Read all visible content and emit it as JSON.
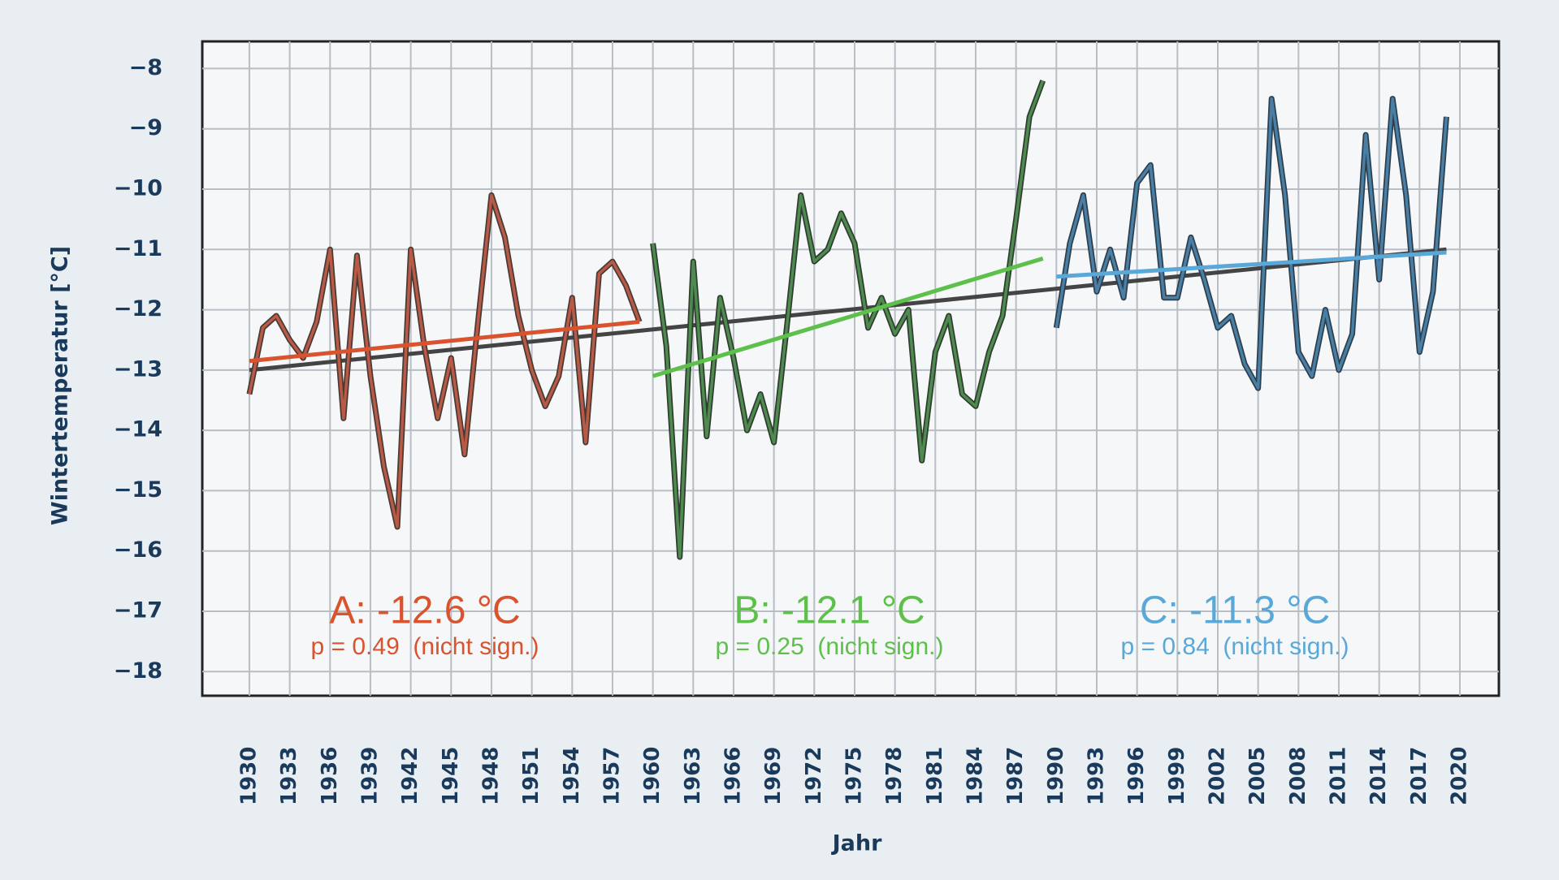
{
  "chart_data": {
    "type": "line",
    "x_label": "Jahr",
    "y_label": "Wintertemperatur [°C]",
    "xlim": [
      1926.5,
      2022.9
    ],
    "ylim": [
      -18.4,
      -7.55
    ],
    "xticks": [
      1930,
      1933,
      1936,
      1939,
      1942,
      1945,
      1948,
      1951,
      1954,
      1957,
      1960,
      1963,
      1966,
      1969,
      1972,
      1975,
      1978,
      1981,
      1984,
      1987,
      1990,
      1993,
      1996,
      1999,
      2002,
      2005,
      2008,
      2011,
      2014,
      2017,
      2020
    ],
    "yticks": [
      {
        "value": -8,
        "label": "−8"
      },
      {
        "value": -9,
        "label": "−9"
      },
      {
        "value": -10,
        "label": "−10"
      },
      {
        "value": -11,
        "label": "−11"
      },
      {
        "value": -12,
        "label": "−12"
      },
      {
        "value": -13,
        "label": "−13"
      },
      {
        "value": -14,
        "label": "−14"
      },
      {
        "value": -15,
        "label": "−15"
      },
      {
        "value": -16,
        "label": "−16"
      },
      {
        "value": -17,
        "label": "−17"
      },
      {
        "value": -18,
        "label": "−18"
      }
    ],
    "grid": true,
    "series": [
      {
        "color": "#b85a45",
        "outline": "#4a3a36",
        "x": [
          1930,
          1931,
          1932,
          1933,
          1934,
          1935,
          1936,
          1937,
          1938,
          1939,
          1940,
          1941,
          1942,
          1943,
          1944,
          1945,
          1946,
          1947,
          1948,
          1949,
          1950,
          1951,
          1952,
          1953,
          1954,
          1955,
          1956,
          1957,
          1958,
          1959
        ],
        "values": [
          -13.4,
          -12.3,
          -12.1,
          -12.5,
          -12.8,
          -12.2,
          -11.0,
          -13.8,
          -11.1,
          -13.1,
          -14.6,
          -15.6,
          -11.0,
          -12.6,
          -13.8,
          -12.8,
          -14.4,
          -12.2,
          -10.1,
          -10.8,
          -12.1,
          -13.0,
          -13.6,
          -13.1,
          -11.8,
          -14.2,
          -11.4,
          -11.2,
          -11.6,
          -12.2
        ]
      },
      {
        "color": "#4f8a50",
        "outline": "#2e3d2e",
        "x": [
          1960,
          1961,
          1962,
          1963,
          1964,
          1965,
          1966,
          1967,
          1968,
          1969,
          1970,
          1971,
          1972,
          1973,
          1974,
          1975,
          1976,
          1977,
          1978,
          1979,
          1980,
          1981,
          1982,
          1983,
          1984,
          1985,
          1986,
          1987,
          1988,
          1989
        ],
        "values": [
          -10.9,
          -12.6,
          -16.1,
          -11.2,
          -14.1,
          -11.8,
          -12.8,
          -14.0,
          -13.4,
          -14.2,
          -12.2,
          -10.1,
          -11.2,
          -11.0,
          -10.4,
          -10.9,
          -12.3,
          -11.8,
          -12.4,
          -12.0,
          -14.5,
          -12.7,
          -12.1,
          -13.4,
          -13.6,
          -12.7,
          -12.1,
          -10.5,
          -8.8,
          -8.2
        ]
      },
      {
        "color": "#4a7fa5",
        "outline": "#2d3e4d",
        "x": [
          1990,
          1991,
          1992,
          1993,
          1994,
          1995,
          1996,
          1997,
          1998,
          1999,
          2000,
          2001,
          2002,
          2003,
          2004,
          2005,
          2006,
          2007,
          2008,
          2009,
          2010,
          2011,
          2012,
          2013,
          2014,
          2015,
          2016,
          2017,
          2018,
          2019
        ],
        "values": [
          -12.3,
          -10.9,
          -10.1,
          -11.7,
          -11.0,
          -11.8,
          -9.9,
          -9.6,
          -11.8,
          -11.8,
          -10.8,
          -11.5,
          -12.3,
          -12.1,
          -12.9,
          -13.3,
          -8.5,
          -10.1,
          -12.7,
          -13.1,
          -12.0,
          -13.0,
          -12.4,
          -9.1,
          -11.5,
          -8.5,
          -10.1,
          -12.7,
          -11.7,
          -8.8
        ]
      }
    ],
    "trends": [
      {
        "color": "#444444",
        "x": [
          1930,
          2019
        ],
        "values": [
          -13.0,
          -11.0
        ]
      },
      {
        "color": "#d9532e",
        "x": [
          1930,
          1959
        ],
        "values": [
          -12.85,
          -12.2
        ]
      },
      {
        "color": "#5dc04a",
        "x": [
          1960,
          1989
        ],
        "values": [
          -13.1,
          -11.15
        ]
      },
      {
        "color": "#5aa8d8",
        "x": [
          1990,
          2019
        ],
        "values": [
          -11.45,
          -11.05
        ]
      }
    ],
    "annotations": [
      {
        "text": "A: -12.6 °C",
        "subtext": "p = 0.49  (nicht sign.)",
        "color": "#d9532e"
      },
      {
        "text": "B: -12.1 °C",
        "subtext": "p = 0.25  (nicht sign.)",
        "color": "#5dc04a"
      },
      {
        "text": "C: -11.3 °C",
        "subtext": "p = 0.84  (nicht sign.)",
        "color": "#5aa8d8"
      }
    ]
  }
}
